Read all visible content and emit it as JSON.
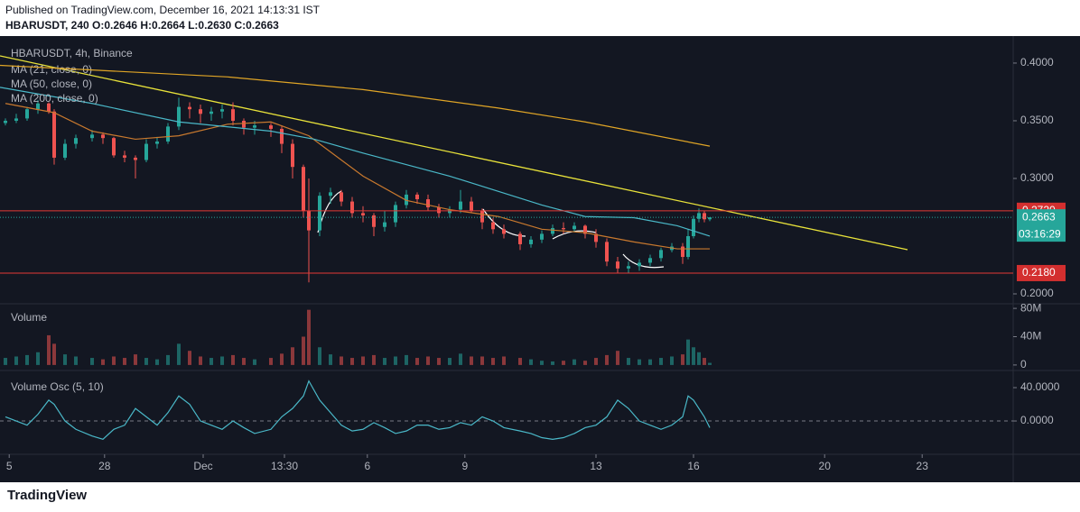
{
  "header": {
    "published": "Published on TradingView.com, December 16, 2021 14:13:31 IST",
    "symbol_line": "HBARUSDT, 240 O:0.2646 H:0.2664 L:0.2630 C:0.2663"
  },
  "chart_data": [
    {
      "type": "candlestick",
      "title": "HBARUSDT, 4h, Binance",
      "up_color": "#26a69a",
      "down_color": "#ef5350",
      "x": [
        1,
        3,
        5,
        7,
        9,
        10,
        12,
        14,
        17,
        19,
        21,
        23,
        25,
        27,
        29,
        31,
        33,
        35,
        37,
        39,
        41,
        43,
        45,
        47,
        50,
        52,
        54,
        56,
        57,
        59,
        61,
        63,
        65,
        67,
        69,
        71,
        73,
        75,
        77,
        79,
        81,
        83,
        85,
        87,
        89,
        91,
        93,
        96,
        98,
        100,
        102,
        104,
        106,
        108,
        110,
        112,
        114,
        116,
        118,
        120,
        122,
        124,
        126,
        127,
        128,
        129,
        130,
        131
      ],
      "open": [
        0.348,
        0.35,
        0.352,
        0.36,
        0.365,
        0.358,
        0.318,
        0.33,
        0.335,
        0.338,
        0.335,
        0.32,
        0.318,
        0.316,
        0.33,
        0.332,
        0.345,
        0.362,
        0.36,
        0.356,
        0.358,
        0.36,
        0.35,
        0.344,
        0.346,
        0.343,
        0.33,
        0.31,
        0.272,
        0.255,
        0.285,
        0.288,
        0.28,
        0.27,
        0.268,
        0.258,
        0.262,
        0.277,
        0.286,
        0.282,
        0.275,
        0.27,
        0.273,
        0.28,
        0.272,
        0.262,
        0.256,
        0.252,
        0.243,
        0.247,
        0.252,
        0.257,
        0.256,
        0.259,
        0.252,
        0.245,
        0.228,
        0.222,
        0.224,
        0.227,
        0.231,
        0.238,
        0.241,
        0.232,
        0.25,
        0.265,
        0.27,
        0.2646
      ],
      "high": [
        0.352,
        0.356,
        0.362,
        0.368,
        0.366,
        0.36,
        0.334,
        0.338,
        0.342,
        0.34,
        0.336,
        0.324,
        0.32,
        0.334,
        0.336,
        0.348,
        0.37,
        0.366,
        0.364,
        0.362,
        0.364,
        0.366,
        0.352,
        0.35,
        0.348,
        0.346,
        0.334,
        0.312,
        0.3,
        0.288,
        0.292,
        0.29,
        0.284,
        0.276,
        0.27,
        0.272,
        0.28,
        0.29,
        0.288,
        0.286,
        0.278,
        0.276,
        0.29,
        0.284,
        0.274,
        0.266,
        0.26,
        0.254,
        0.25,
        0.255,
        0.26,
        0.262,
        0.262,
        0.26,
        0.256,
        0.248,
        0.232,
        0.228,
        0.23,
        0.234,
        0.24,
        0.244,
        0.244,
        0.256,
        0.268,
        0.274,
        0.272,
        0.2664
      ],
      "low": [
        0.346,
        0.348,
        0.35,
        0.356,
        0.356,
        0.312,
        0.316,
        0.326,
        0.332,
        0.33,
        0.318,
        0.314,
        0.3,
        0.314,
        0.326,
        0.33,
        0.342,
        0.352,
        0.348,
        0.35,
        0.352,
        0.346,
        0.338,
        0.338,
        0.336,
        0.322,
        0.3,
        0.266,
        0.21,
        0.25,
        0.278,
        0.276,
        0.266,
        0.262,
        0.25,
        0.254,
        0.258,
        0.274,
        0.278,
        0.272,
        0.266,
        0.266,
        0.27,
        0.27,
        0.256,
        0.252,
        0.248,
        0.238,
        0.24,
        0.244,
        0.25,
        0.252,
        0.254,
        0.248,
        0.24,
        0.224,
        0.218,
        0.218,
        0.22,
        0.224,
        0.228,
        0.236,
        0.226,
        0.23,
        0.248,
        0.262,
        0.262,
        0.263
      ],
      "close": [
        0.35,
        0.352,
        0.36,
        0.365,
        0.358,
        0.318,
        0.33,
        0.335,
        0.338,
        0.335,
        0.32,
        0.318,
        0.316,
        0.33,
        0.332,
        0.345,
        0.362,
        0.36,
        0.356,
        0.358,
        0.36,
        0.35,
        0.344,
        0.346,
        0.343,
        0.33,
        0.31,
        0.272,
        0.255,
        0.285,
        0.288,
        0.28,
        0.27,
        0.268,
        0.258,
        0.262,
        0.277,
        0.286,
        0.282,
        0.275,
        0.27,
        0.273,
        0.28,
        0.272,
        0.262,
        0.256,
        0.252,
        0.243,
        0.247,
        0.252,
        0.257,
        0.256,
        0.259,
        0.252,
        0.245,
        0.228,
        0.222,
        0.224,
        0.227,
        0.231,
        0.238,
        0.241,
        0.232,
        0.25,
        0.265,
        0.27,
        0.2646,
        0.2663
      ],
      "overlays": [
        {
          "name": "MA (21, close, 0)",
          "color": "#c9792e",
          "x": [
            1,
            10,
            17,
            25,
            33,
            42,
            50,
            57,
            67,
            75,
            83,
            92,
            100,
            108,
            117,
            125,
            131
          ],
          "values": [
            0.365,
            0.357,
            0.341,
            0.334,
            0.337,
            0.347,
            0.349,
            0.337,
            0.302,
            0.281,
            0.273,
            0.267,
            0.256,
            0.253,
            0.245,
            0.239,
            0.239
          ]
        },
        {
          "name": "MA (50, close, 0)",
          "color": "#4ab8c8",
          "x": [
            0,
            17,
            33,
            50,
            58,
            67,
            83,
            100,
            108,
            117,
            125,
            131
          ],
          "values": [
            0.379,
            0.365,
            0.349,
            0.341,
            0.334,
            0.322,
            0.302,
            0.277,
            0.267,
            0.266,
            0.259,
            0.25
          ]
        },
        {
          "name": "MA (200, close, 0)",
          "color": "#e0a526",
          "x": [
            0,
            17,
            42,
            67,
            92,
            108,
            131
          ],
          "values": [
            0.398,
            0.394,
            0.388,
            0.377,
            0.361,
            0.349,
            0.328
          ]
        }
      ],
      "levels": [
        {
          "value": 0.272,
          "label": "0.2720"
        },
        {
          "value": 0.218,
          "label": "0.2180"
        }
      ],
      "last_price": 0.2663,
      "countdown": "03:16:29",
      "xlim": [
        0,
        187
      ],
      "ylim": [
        0.1914,
        0.4195
      ],
      "yticks": [
        {
          "value": 0.4,
          "label": "0.4000"
        },
        {
          "value": 0.35,
          "label": "0.3500"
        },
        {
          "value": 0.3,
          "label": "0.3000"
        },
        {
          "value": 0.2,
          "label": "0.2000"
        }
      ],
      "xticks": [
        {
          "value": 1.7,
          "label": "5"
        },
        {
          "value": 19.3,
          "label": "28"
        },
        {
          "value": 37.5,
          "label": "Dec"
        },
        {
          "value": 52.5,
          "label": "13:30"
        },
        {
          "value": 67.8,
          "label": "6"
        },
        {
          "value": 85.8,
          "label": "9"
        },
        {
          "value": 110,
          "label": "13"
        },
        {
          "value": 128,
          "label": "16"
        },
        {
          "value": 152.2,
          "label": "20"
        },
        {
          "value": 170.2,
          "label": "23"
        }
      ]
    },
    {
      "type": "bar",
      "title": "Volume",
      "x": [
        1,
        3,
        5,
        7,
        9,
        10,
        12,
        14,
        17,
        19,
        21,
        23,
        25,
        27,
        29,
        31,
        33,
        35,
        37,
        39,
        41,
        43,
        45,
        47,
        50,
        52,
        54,
        56,
        57,
        59,
        61,
        63,
        65,
        67,
        69,
        71,
        73,
        75,
        77,
        79,
        81,
        83,
        85,
        87,
        89,
        91,
        93,
        96,
        98,
        100,
        102,
        104,
        106,
        108,
        110,
        112,
        114,
        116,
        118,
        120,
        122,
        124,
        126,
        127,
        128,
        129,
        130,
        131
      ],
      "values": [
        10,
        12,
        14,
        18,
        42,
        30,
        15,
        12,
        10,
        8,
        12,
        10,
        15,
        10,
        8,
        14,
        30,
        20,
        12,
        10,
        12,
        14,
        10,
        8,
        10,
        16,
        25,
        40,
        78,
        25,
        15,
        12,
        10,
        12,
        14,
        10,
        12,
        14,
        10,
        12,
        10,
        10,
        16,
        12,
        12,
        10,
        12,
        10,
        8,
        6,
        5,
        6,
        8,
        6,
        10,
        14,
        20,
        10,
        8,
        8,
        10,
        12,
        15,
        36,
        25,
        18,
        10,
        3
      ],
      "xlim": [
        0,
        187
      ],
      "ylim": [
        -6.5,
        86.5
      ],
      "yticks": [
        {
          "value": 80,
          "label": "80M"
        },
        {
          "value": 40,
          "label": "40M"
        },
        0
      ]
    },
    {
      "type": "line",
      "title": "Volume Osc (5, 10)",
      "color": "#4ab8c8",
      "x": [
        1,
        3,
        5,
        7,
        9,
        10,
        12,
        14,
        17,
        19,
        21,
        23,
        25,
        27,
        29,
        31,
        33,
        35,
        37,
        39,
        41,
        43,
        45,
        47,
        50,
        52,
        54,
        56,
        57,
        59,
        61,
        63,
        65,
        67,
        69,
        71,
        73,
        75,
        77,
        79,
        81,
        83,
        85,
        87,
        89,
        91,
        93,
        96,
        98,
        100,
        102,
        104,
        106,
        108,
        110,
        112,
        114,
        116,
        118,
        120,
        122,
        124,
        126,
        127,
        128,
        129,
        130,
        131
      ],
      "values": [
        5,
        0,
        -5,
        8,
        25,
        20,
        0,
        -10,
        -18,
        -22,
        -10,
        -5,
        15,
        5,
        -5,
        10,
        30,
        20,
        0,
        -5,
        -10,
        0,
        -8,
        -15,
        -10,
        5,
        15,
        30,
        48,
        25,
        10,
        -5,
        -12,
        -10,
        -2,
        -8,
        -15,
        -12,
        -5,
        -5,
        -10,
        -8,
        -2,
        -5,
        5,
        0,
        -8,
        -12,
        -15,
        -20,
        -22,
        -20,
        -15,
        -8,
        -5,
        5,
        25,
        15,
        0,
        -5,
        -10,
        -5,
        5,
        30,
        25,
        15,
        5,
        -8
      ],
      "xlim": [
        0,
        187
      ],
      "ylim": [
        -38.9,
        59.5
      ],
      "yticks": [
        {
          "value": 40,
          "label": "40.0000"
        },
        {
          "value": 0,
          "label": "0.0000"
        }
      ]
    }
  ],
  "footer": {
    "logo": "TradingView"
  }
}
